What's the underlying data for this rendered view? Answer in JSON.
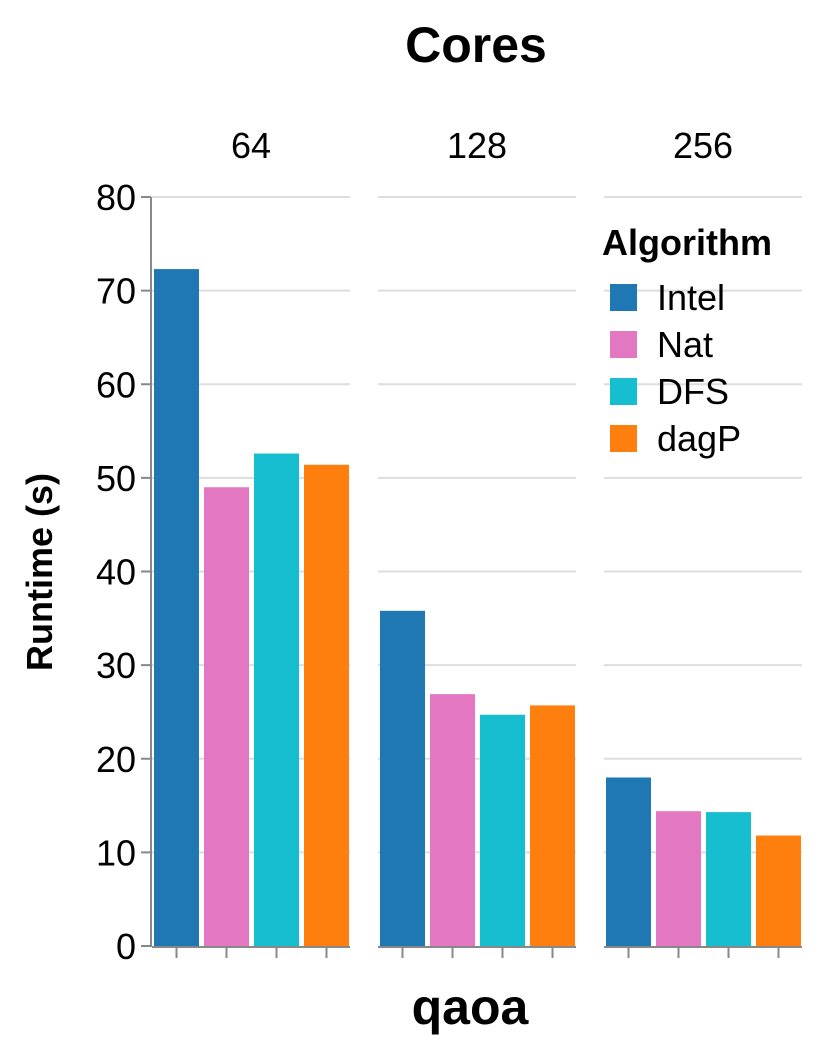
{
  "chart_data": {
    "type": "bar",
    "title": "Cores",
    "facets": [
      "64",
      "128",
      "256"
    ],
    "xlabel": "qaoa",
    "ylabel": "Runtime (s)",
    "ylim": [
      0,
      80
    ],
    "yticks": [
      "0",
      "10",
      "20",
      "30",
      "40",
      "50",
      "60",
      "70",
      "80"
    ],
    "grid": true,
    "legend": {
      "title": "Algorithm",
      "position": "top-right",
      "entries": [
        "Intel",
        "Nat",
        "DFS",
        "dagP"
      ]
    },
    "series": [
      {
        "name": "Intel",
        "color": "#1f77b4",
        "values": [
          72.3,
          35.8,
          18.0
        ]
      },
      {
        "name": "Nat",
        "color": "#e377c2",
        "values": [
          49.0,
          26.9,
          14.4
        ]
      },
      {
        "name": "DFS",
        "color": "#17becf",
        "values": [
          52.6,
          24.7,
          14.3
        ]
      },
      {
        "name": "dagP",
        "color": "#ff7f0e",
        "values": [
          51.4,
          25.7,
          11.8
        ]
      }
    ]
  }
}
